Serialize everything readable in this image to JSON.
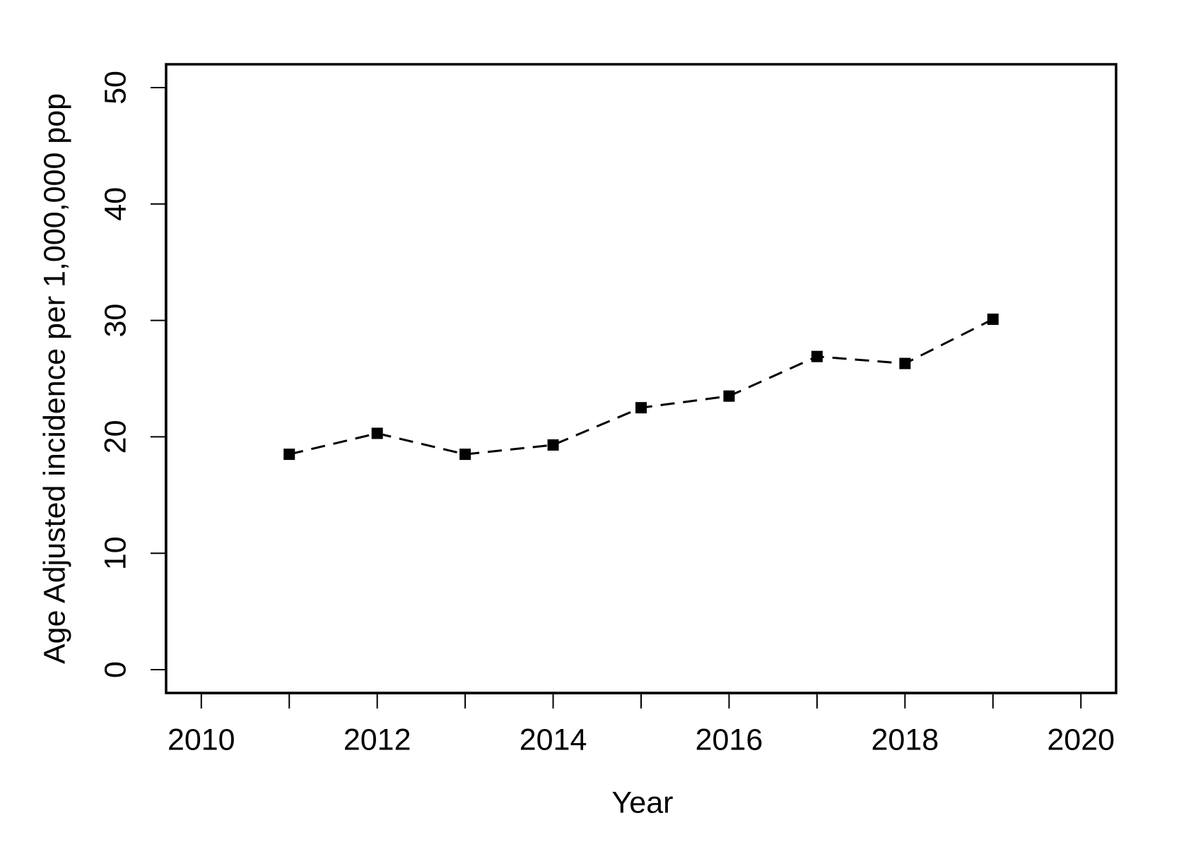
{
  "chart_data": {
    "type": "line",
    "x_label": "Year",
    "y_label": "Age Adjusted incidence per 1,000,000 pop",
    "x": [
      2011,
      2012,
      2013,
      2014,
      2015,
      2016,
      2017,
      2018,
      2019
    ],
    "values": [
      18.5,
      20.3,
      18.5,
      19.3,
      22.5,
      23.5,
      26.9,
      26.3,
      30.1
    ],
    "color": "#000000",
    "line_style": "dashed",
    "marker": "square",
    "xlim": [
      2009.6,
      2020.4
    ],
    "xticks": [
      2010,
      2012,
      2014,
      2016,
      2018,
      2020
    ],
    "xminor_ticks": [
      2011,
      2013,
      2015,
      2017,
      2019
    ],
    "ylim": [
      -2,
      52
    ],
    "yticks": [
      0,
      10,
      20,
      30,
      40,
      50
    ],
    "grid": false
  }
}
